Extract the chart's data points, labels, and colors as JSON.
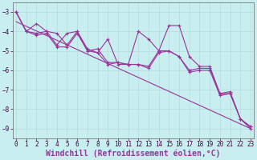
{
  "background_color": "#c8eef0",
  "line_color": "#993399",
  "grid_color": "#b8dfe0",
  "xlabel": "Windchill (Refroidissement éolien,°C)",
  "tick_fontsize": 5.5,
  "xlabel_fontsize": 7.0,
  "xlim": [
    0,
    23
  ],
  "ylim": [
    -9.5,
    -2.5
  ],
  "yticks": [
    -9,
    -8,
    -7,
    -6,
    -5,
    -4,
    -3
  ],
  "xticks": [
    0,
    1,
    2,
    3,
    4,
    5,
    6,
    7,
    8,
    9,
    10,
    11,
    12,
    13,
    14,
    15,
    16,
    17,
    18,
    19,
    20,
    21,
    22,
    23
  ],
  "series1": [
    [
      0,
      -3.0
    ],
    [
      1,
      -4.0
    ],
    [
      2,
      -3.6
    ],
    [
      3,
      -4.0
    ],
    [
      4,
      -4.7
    ],
    [
      5,
      -4.1
    ],
    [
      6,
      -4.0
    ],
    [
      7,
      -4.9
    ],
    [
      8,
      -5.1
    ],
    [
      9,
      -4.4
    ],
    [
      10,
      -5.7
    ],
    [
      11,
      -5.7
    ],
    [
      12,
      -4.0
    ],
    [
      13,
      -4.4
    ],
    [
      14,
      -5.0
    ],
    [
      15,
      -3.7
    ],
    [
      16,
      -3.7
    ],
    [
      17,
      -5.3
    ],
    [
      18,
      -5.8
    ],
    [
      19,
      -5.8
    ],
    [
      20,
      -7.2
    ],
    [
      21,
      -7.2
    ],
    [
      22,
      -8.5
    ],
    [
      23,
      -8.9
    ]
  ],
  "series2": [
    [
      0,
      -3.0
    ],
    [
      1,
      -4.0
    ],
    [
      2,
      -4.1
    ],
    [
      3,
      -4.0
    ],
    [
      4,
      -4.1
    ],
    [
      5,
      -4.7
    ],
    [
      6,
      -4.0
    ],
    [
      7,
      -5.0
    ],
    [
      8,
      -4.9
    ],
    [
      9,
      -5.6
    ],
    [
      10,
      -5.6
    ],
    [
      11,
      -5.7
    ],
    [
      12,
      -5.7
    ],
    [
      13,
      -5.8
    ],
    [
      14,
      -5.0
    ],
    [
      15,
      -5.0
    ],
    [
      16,
      -5.3
    ],
    [
      17,
      -6.0
    ],
    [
      18,
      -5.9
    ],
    [
      19,
      -5.9
    ],
    [
      20,
      -7.2
    ],
    [
      21,
      -7.1
    ],
    [
      22,
      -8.5
    ],
    [
      23,
      -8.9
    ]
  ],
  "series3": [
    [
      0,
      -3.0
    ],
    [
      1,
      -4.0
    ],
    [
      2,
      -4.2
    ],
    [
      3,
      -4.1
    ],
    [
      4,
      -4.8
    ],
    [
      5,
      -4.8
    ],
    [
      6,
      -4.1
    ],
    [
      7,
      -5.0
    ],
    [
      8,
      -5.1
    ],
    [
      9,
      -5.7
    ],
    [
      10,
      -5.6
    ],
    [
      11,
      -5.7
    ],
    [
      12,
      -5.7
    ],
    [
      13,
      -5.9
    ],
    [
      14,
      -5.1
    ],
    [
      15,
      -5.0
    ],
    [
      16,
      -5.3
    ],
    [
      17,
      -6.1
    ],
    [
      18,
      -6.0
    ],
    [
      19,
      -6.0
    ],
    [
      20,
      -7.3
    ],
    [
      21,
      -7.2
    ],
    [
      22,
      -8.5
    ],
    [
      23,
      -9.0
    ]
  ],
  "trend_x": [
    0,
    23
  ],
  "trend_y": [
    -3.5,
    -9.0
  ]
}
